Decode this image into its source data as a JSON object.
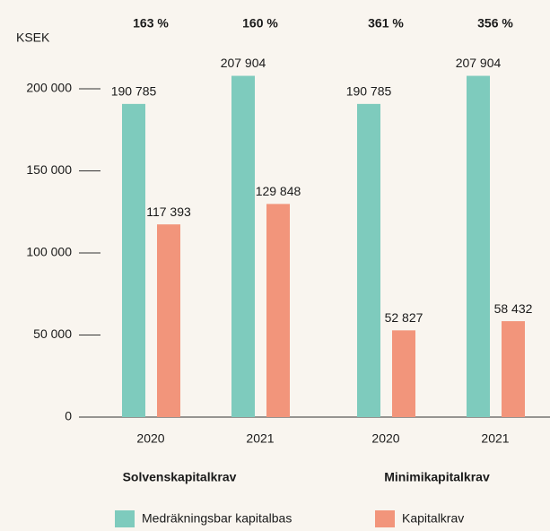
{
  "chart_data": {
    "type": "bar",
    "unit_label": "KSEK",
    "categories": [
      "2020",
      "2021",
      "2020",
      "2021"
    ],
    "ratio_labels": [
      "163 %",
      "160 %",
      "361 %",
      "356 %"
    ],
    "groups": [
      "Solvenskapitalkrav",
      "Minimikapitalkrav"
    ],
    "series": [
      {
        "name": "Medräkningsbar kapitalbas",
        "color": "#7ecbbd",
        "values": [
          190785,
          207904,
          190785,
          207904
        ],
        "value_labels": [
          "190 785",
          "207 904",
          "190 785",
          "207 904"
        ]
      },
      {
        "name": "Kapitalkrav",
        "color": "#f2957b",
        "values": [
          117393,
          129848,
          52827,
          58432
        ],
        "value_labels": [
          "117 393",
          "129 848",
          "52 827",
          "58 432"
        ]
      }
    ],
    "ylim": [
      0,
      200000
    ],
    "yticks": [
      0,
      {
        "value": 50000,
        "label": "50 000"
      },
      {
        "value": 100000,
        "label": "100 000"
      },
      {
        "value": 150000,
        "label": "150  000"
      },
      {
        "value": 200000,
        "label": "200 000"
      }
    ]
  }
}
